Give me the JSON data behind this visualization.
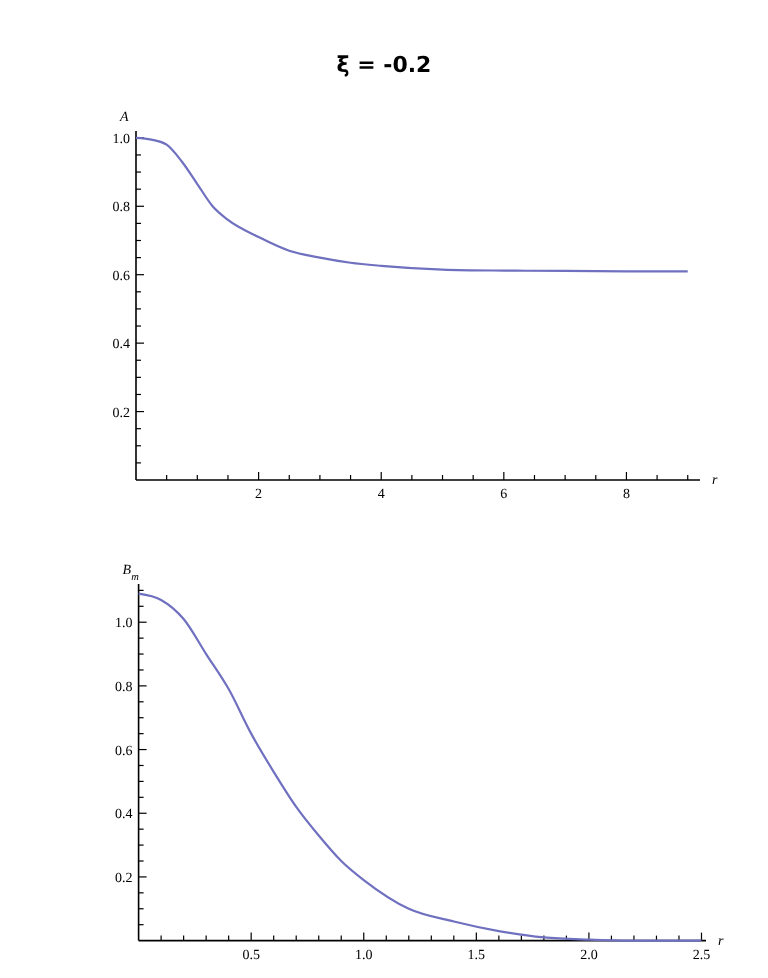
{
  "chart_data": [
    {
      "type": "line",
      "title": "ξ = -0.2",
      "xlabel": "r",
      "ylabel": "A",
      "xlim": [
        0,
        9.2
      ],
      "ylim": [
        0,
        1.02
      ],
      "xticks": [
        {
          "value": 0.5,
          "label": null
        },
        {
          "value": 1,
          "label": null
        },
        {
          "value": 1.5,
          "label": null
        },
        2,
        {
          "value": 2.5,
          "label": null
        },
        {
          "value": 3,
          "label": null
        },
        {
          "value": 3.5,
          "label": null
        },
        4,
        {
          "value": 4.5,
          "label": null
        },
        {
          "value": 5,
          "label": null
        },
        {
          "value": 5.5,
          "label": null
        },
        6,
        {
          "value": 6.5,
          "label": null
        },
        {
          "value": 7,
          "label": null
        },
        {
          "value": 7.5,
          "label": null
        },
        8,
        {
          "value": 8.5,
          "label": null
        },
        {
          "value": 9,
          "label": null
        }
      ],
      "yticks": [
        {
          "value": 0.05,
          "label": null
        },
        {
          "value": 0.1,
          "label": null
        },
        {
          "value": 0.15,
          "label": null
        },
        {
          "value": 0.2,
          "label": "0.2"
        },
        {
          "value": 0.25,
          "label": null
        },
        {
          "value": 0.3,
          "label": null
        },
        {
          "value": 0.35,
          "label": null
        },
        {
          "value": 0.4,
          "label": "0.4"
        },
        {
          "value": 0.45,
          "label": null
        },
        {
          "value": 0.5,
          "label": null
        },
        {
          "value": 0.55,
          "label": null
        },
        {
          "value": 0.6,
          "label": "0.6"
        },
        {
          "value": 0.65,
          "label": null
        },
        {
          "value": 0.7,
          "label": null
        },
        {
          "value": 0.75,
          "label": null
        },
        {
          "value": 0.8,
          "label": "0.8"
        },
        {
          "value": 0.85,
          "label": null
        },
        {
          "value": 0.9,
          "label": null
        },
        {
          "value": 0.95,
          "label": null
        },
        {
          "value": 1,
          "label": "1.0"
        }
      ],
      "series": [
        {
          "color": "#7070c0",
          "x": [
            0,
            0.25,
            0.5,
            0.75,
            1,
            1.25,
            1.5,
            2,
            2.5,
            3,
            3.5,
            4,
            5,
            6,
            7,
            8,
            9
          ],
          "values": [
            1.0,
            0.995,
            0.98,
            0.93,
            0.865,
            0.8,
            0.76,
            0.71,
            0.67,
            0.65,
            0.635,
            0.626,
            0.615,
            0.612,
            0.611,
            0.61,
            0.61
          ]
        }
      ]
    },
    {
      "type": "line",
      "xlabel": "r",
      "ylabel": "B$_{m}$",
      "xlim": [
        0,
        2.52
      ],
      "ylim": [
        0,
        1.12
      ],
      "xticks": [
        {
          "value": 0.1,
          "label": null
        },
        {
          "value": 0.2,
          "label": null
        },
        {
          "value": 0.3,
          "label": null
        },
        {
          "value": 0.4,
          "label": null
        },
        {
          "value": 0.5,
          "label": "0.5"
        },
        {
          "value": 0.6,
          "label": null
        },
        {
          "value": 0.7,
          "label": null
        },
        {
          "value": 0.8,
          "label": null
        },
        {
          "value": 0.9,
          "label": null
        },
        {
          "value": 1,
          "label": "1.0"
        },
        {
          "value": 1.1,
          "label": null
        },
        {
          "value": 1.2,
          "label": null
        },
        {
          "value": 1.3,
          "label": null
        },
        {
          "value": 1.4,
          "label": null
        },
        {
          "value": 1.5,
          "label": "1.5"
        },
        {
          "value": 1.6,
          "label": null
        },
        {
          "value": 1.7,
          "label": null
        },
        {
          "value": 1.8,
          "label": null
        },
        {
          "value": 1.9,
          "label": null
        },
        {
          "value": 2,
          "label": "2.0"
        },
        {
          "value": 2.1,
          "label": null
        },
        {
          "value": 2.2,
          "label": null
        },
        {
          "value": 2.3,
          "label": null
        },
        {
          "value": 2.4,
          "label": null
        },
        {
          "value": 2.5,
          "label": "2.5"
        }
      ],
      "yticks": [
        {
          "value": 0.05,
          "label": null
        },
        {
          "value": 0.1,
          "label": null
        },
        {
          "value": 0.15,
          "label": null
        },
        {
          "value": 0.2,
          "label": "0.2"
        },
        {
          "value": 0.25,
          "label": null
        },
        {
          "value": 0.3,
          "label": null
        },
        {
          "value": 0.35,
          "label": null
        },
        {
          "value": 0.4,
          "label": "0.4"
        },
        {
          "value": 0.45,
          "label": null
        },
        {
          "value": 0.5,
          "label": null
        },
        {
          "value": 0.55,
          "label": null
        },
        {
          "value": 0.6,
          "label": "0.6"
        },
        {
          "value": 0.65,
          "label": null
        },
        {
          "value": 0.7,
          "label": null
        },
        {
          "value": 0.75,
          "label": null
        },
        {
          "value": 0.8,
          "label": "0.8"
        },
        {
          "value": 0.85,
          "label": null
        },
        {
          "value": 0.9,
          "label": null
        },
        {
          "value": 0.95,
          "label": null
        },
        {
          "value": 1,
          "label": "1.0"
        },
        {
          "value": 1.05,
          "label": null
        },
        {
          "value": 1.1,
          "label": null
        }
      ],
      "series": [
        {
          "color": "#7070c0",
          "x": [
            0,
            0.1,
            0.2,
            0.3,
            0.4,
            0.5,
            0.6,
            0.7,
            0.8,
            0.9,
            1.0,
            1.2,
            1.4,
            1.6,
            1.8,
            2.0,
            2.2,
            2.5
          ],
          "values": [
            1.09,
            1.07,
            1.01,
            0.9,
            0.79,
            0.65,
            0.53,
            0.42,
            0.33,
            0.25,
            0.19,
            0.1,
            0.06,
            0.03,
            0.01,
            0.003,
            0,
            0
          ]
        }
      ]
    }
  ]
}
